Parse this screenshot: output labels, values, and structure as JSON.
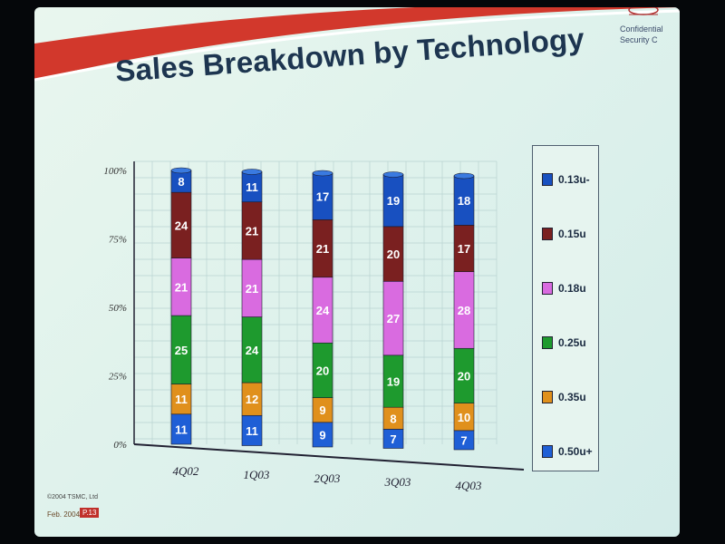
{
  "slide": {
    "title": "Sales Breakdown by Technology",
    "confidential_line1": "Confidential",
    "confidential_line2": "Security C",
    "copyright": "©2004 TSMC, Ltd",
    "footer_date": "Feb. 2004",
    "footer_page": "P.13"
  },
  "chart_data": {
    "type": "bar",
    "stacked": true,
    "title": "Sales Breakdown by Technology",
    "categories": [
      "4Q02",
      "1Q03",
      "2Q03",
      "3Q03",
      "4Q03"
    ],
    "y_ticks": [
      "0%",
      "25%",
      "50%",
      "75%",
      "100%"
    ],
    "ylim": [
      0,
      100
    ],
    "legend_position": "right",
    "series": [
      {
        "name": "0.50u+",
        "color": "#1f5fd6",
        "values": [
          11,
          11,
          9,
          7,
          7
        ]
      },
      {
        "name": "0.35u",
        "color": "#e0901c",
        "values": [
          11,
          12,
          9,
          8,
          10
        ]
      },
      {
        "name": "0.25u",
        "color": "#1e9a2e",
        "values": [
          25,
          24,
          20,
          19,
          20
        ]
      },
      {
        "name": "0.18u",
        "color": "#d96be0",
        "values": [
          21,
          21,
          24,
          27,
          28
        ]
      },
      {
        "name": "0.15u",
        "color": "#7a2020",
        "values": [
          24,
          21,
          21,
          20,
          17
        ]
      },
      {
        "name": "0.13u-",
        "color": "#1850c0",
        "values": [
          8,
          11,
          17,
          19,
          18
        ]
      }
    ]
  }
}
